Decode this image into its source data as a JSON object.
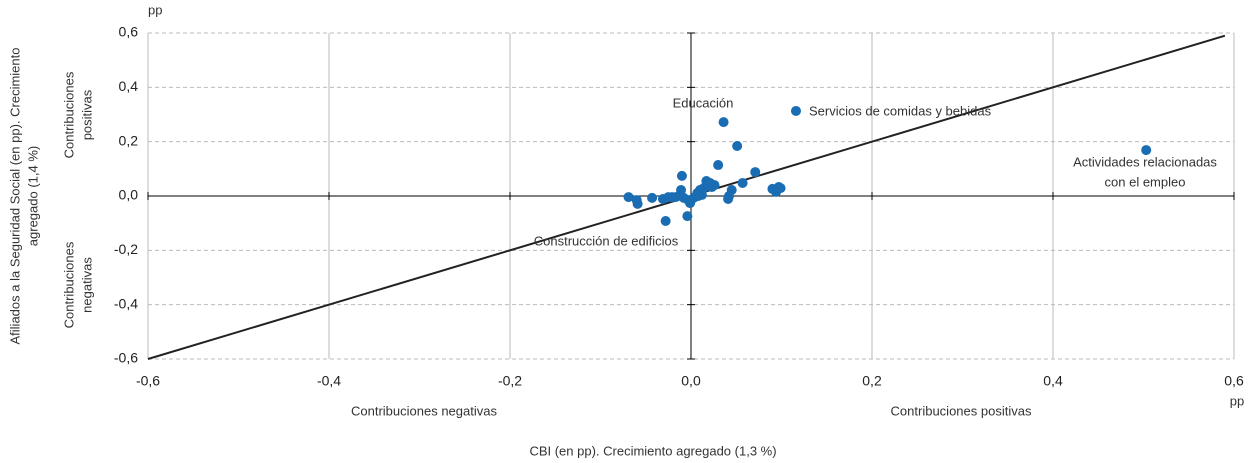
{
  "chart_data": {
    "type": "scatter",
    "y_unit": "pp",
    "x_unit": "pp",
    "x_label": "CBI (en pp). Crecimiento agregado (1,3 %)",
    "y_label": [
      "Afiliados a la Seguridad Social (en pp). Crecimiento",
      "agregado (1,4 %)"
    ],
    "x_side_labels": [
      "Contribuciones negativas",
      "Contribuciones positivas"
    ],
    "y_side_labels": [
      [
        "Contribuciones",
        "positivas"
      ],
      [
        "Contribuciones",
        "negativas"
      ]
    ],
    "annotations": [
      [
        "Educación"
      ],
      [
        "Servicios de comidas y bebidas"
      ],
      [
        "Actividades relacionadas",
        "con el empleo"
      ],
      [
        "Construcción de edificios"
      ]
    ],
    "color": "#1a6db3",
    "x": [
      0.503,
      0.116,
      0.036,
      0.051,
      0.03,
      0.071,
      -0.01,
      0.057,
      0.09,
      0.097,
      0.099,
      0.094,
      0.045,
      0.042,
      0.017,
      0.021,
      0.023,
      0.014,
      0.01,
      0.007,
      0.012,
      -0.069,
      -0.06,
      -0.059,
      -0.043,
      -0.031,
      -0.025,
      -0.021,
      -0.017,
      -0.012,
      -0.008,
      -0.003,
      -0.001,
      0.003,
      0.008,
      -0.028,
      -0.004,
      -0.011,
      0.041,
      0.026
    ],
    "y": [
      0.169,
      0.313,
      0.272,
      0.184,
      0.114,
      0.088,
      0.074,
      0.048,
      0.026,
      0.033,
      0.029,
      0.015,
      0.022,
      0.0,
      0.055,
      0.048,
      0.033,
      0.029,
      0.022,
      0.011,
      0.004,
      -0.004,
      -0.015,
      -0.029,
      -0.007,
      -0.011,
      -0.004,
      -0.004,
      -0.004,
      0.004,
      -0.007,
      -0.015,
      -0.026,
      -0.007,
      0.0,
      -0.092,
      -0.074,
      0.022,
      -0.011,
      0.04
    ],
    "diagonal": {
      "x": [
        -0.6,
        0.59
      ],
      "y": [
        -0.6,
        0.59
      ]
    },
    "xlim": [
      -0.6,
      0.6
    ],
    "ylim": [
      -0.6,
      0.6
    ],
    "xticks": [
      {
        "value": -0.6,
        "label": "-0,6"
      },
      {
        "value": -0.4,
        "label": "-0,4"
      },
      {
        "value": -0.2,
        "label": "-0,2"
      },
      {
        "value": 0,
        "label": "0,0"
      },
      {
        "value": 0.2,
        "label": "0,2"
      },
      {
        "value": 0.4,
        "label": "0,4"
      },
      {
        "value": 0.6,
        "label": "0,6"
      }
    ],
    "yticks": [
      {
        "value": -0.6,
        "label": "-0,6"
      },
      {
        "value": -0.4,
        "label": "-0,4"
      },
      {
        "value": -0.2,
        "label": "-0,2"
      },
      {
        "value": 0,
        "label": "0,0"
      },
      {
        "value": 0.2,
        "label": "0,2"
      },
      {
        "value": 0.4,
        "label": "0,4"
      },
      {
        "value": 0.6,
        "label": "0,6"
      }
    ],
    "grid": true
  }
}
